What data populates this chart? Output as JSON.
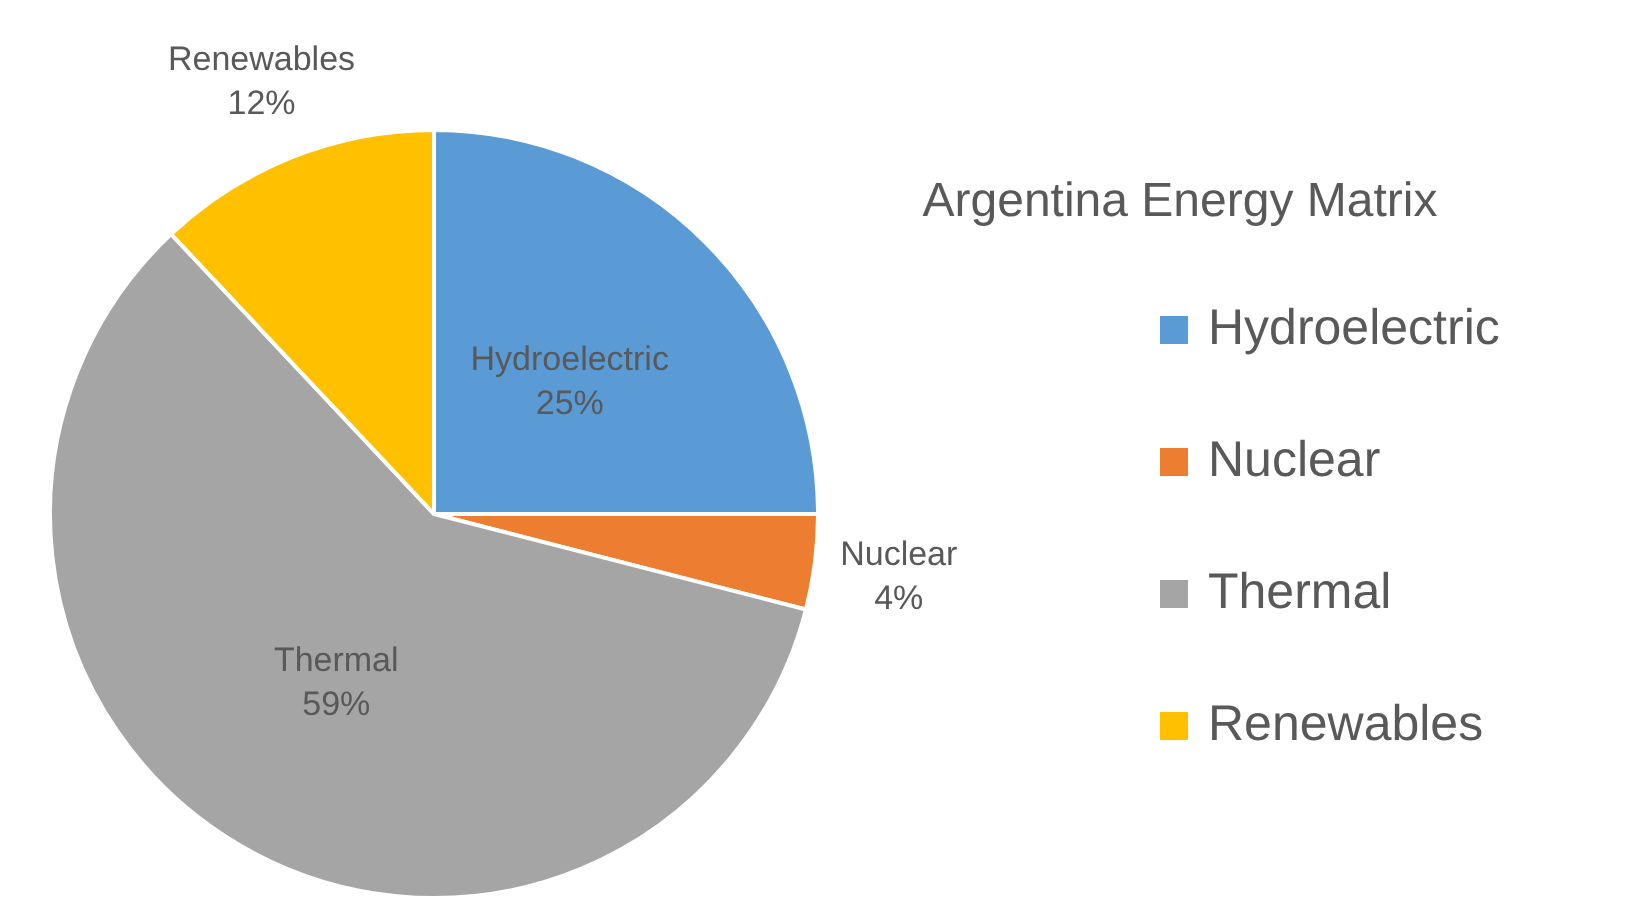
{
  "chart_data": {
    "type": "pie",
    "title": "Argentina Energy Matrix",
    "categories": [
      "Hydroelectric",
      "Nuclear",
      "Thermal",
      "Renewables"
    ],
    "values": [
      25,
      4,
      59,
      12
    ],
    "colors": [
      "#5b9bd5",
      "#ed7d31",
      "#a5a5a5",
      "#ffc000"
    ],
    "value_labels": [
      "25%",
      "4%",
      "59%",
      "12%"
    ],
    "legend": "right"
  }
}
